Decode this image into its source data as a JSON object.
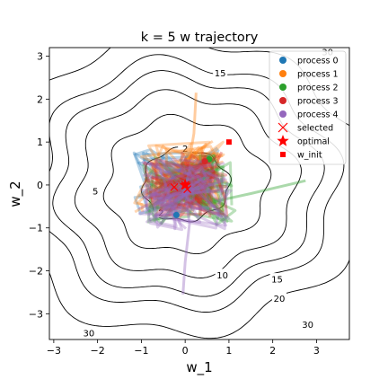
{
  "chart_data": {
    "type": "line",
    "title": "k = 5 w trajectory",
    "xlabel": "w_1",
    "ylabel": "w_2",
    "xlim": [
      -3.1,
      3.75
    ],
    "ylim": [
      -3.6,
      3.2
    ],
    "xticks": [
      -3,
      -2,
      -1,
      0,
      1,
      2,
      3
    ],
    "yticks": [
      -3,
      -2,
      -1,
      0,
      1,
      2,
      3
    ],
    "grid": false,
    "legend_position": "top-right",
    "contours": {
      "levels": [
        2,
        5,
        10,
        15,
        20,
        30
      ],
      "labels": [
        {
          "text": "2",
          "x": 0.0,
          "y": 0.85
        },
        {
          "text": "2",
          "x": -0.55,
          "y": -0.65
        },
        {
          "text": "5",
          "x": -2.05,
          "y": -0.15
        },
        {
          "text": "10",
          "x": 0.85,
          "y": -2.1
        },
        {
          "text": "15",
          "x": 0.8,
          "y": 2.6
        },
        {
          "text": "15",
          "x": 2.1,
          "y": -2.2
        },
        {
          "text": "20",
          "x": 2.15,
          "y": -2.65
        },
        {
          "text": "30",
          "x": 2.8,
          "y": -3.25
        },
        {
          "text": "30",
          "x": -2.2,
          "y": -3.45
        },
        {
          "text": "30",
          "x": 3.25,
          "y": 3.1
        }
      ]
    },
    "series": [
      {
        "name": "process 0",
        "color": "#1f77b4",
        "center": [
          -0.2,
          0.1
        ],
        "spread": 0.55
      },
      {
        "name": "process 1",
        "color": "#ff7f0e",
        "center": [
          -0.1,
          0.2
        ],
        "spread": 0.6,
        "outlier_path": [
          [
            0.1,
            0.6
          ],
          [
            0.2,
            1.2
          ],
          [
            0.25,
            2.15
          ]
        ]
      },
      {
        "name": "process 2",
        "color": "#2ca02c",
        "center": [
          0.1,
          -0.1
        ],
        "spread": 0.6,
        "outlier_path": [
          [
            0.6,
            -0.4
          ],
          [
            1.5,
            -0.2
          ],
          [
            2.75,
            0.1
          ]
        ]
      },
      {
        "name": "process 3",
        "color": "#d62728",
        "center": [
          0.0,
          0.0
        ],
        "spread": 0.55
      },
      {
        "name": "process 4",
        "color": "#9467bd",
        "center": [
          0.0,
          -0.2
        ],
        "spread": 0.6,
        "outlier_path": [
          [
            0.1,
            -0.9
          ],
          [
            0.0,
            -1.8
          ],
          [
            -0.05,
            -2.55
          ]
        ]
      }
    ],
    "selected": {
      "label": "selected",
      "color": "#ff0000",
      "points": [
        [
          -0.25,
          -0.05
        ],
        [
          0.0,
          0.0
        ],
        [
          0.05,
          -0.1
        ]
      ]
    },
    "optimal": {
      "label": "optimal",
      "color": "#ff0000",
      "x": 0.0,
      "y": 0.0
    },
    "w_init": {
      "label": "w_init",
      "color": "#ff0000",
      "x": 1.0,
      "y": 1.0
    },
    "process_markers": [
      {
        "x": -0.2,
        "y": -0.7,
        "color": "#1f77b4"
      },
      {
        "x": 0.55,
        "y": 0.6,
        "color": "#2ca02c"
      },
      {
        "x": 0.45,
        "y": 0.55,
        "color": "#d62728"
      }
    ]
  }
}
